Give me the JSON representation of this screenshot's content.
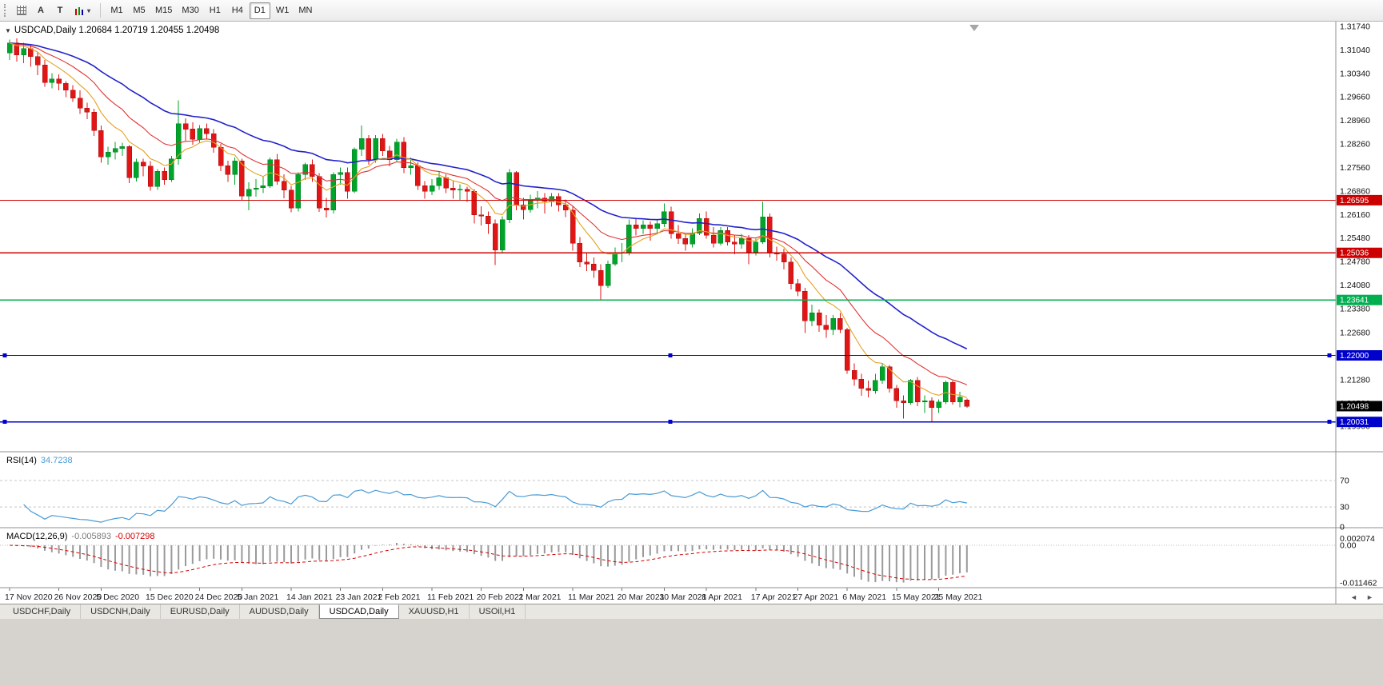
{
  "toolbar": {
    "cursor_label": "A",
    "text_label": "T",
    "timeframes": [
      "M1",
      "M5",
      "M15",
      "M30",
      "H1",
      "H4",
      "D1",
      "W1",
      "MN"
    ],
    "active_timeframe": "D1"
  },
  "icons": {
    "indicator_caret": "▾",
    "info_caret": "▼",
    "shift_marker": "▼",
    "scroll_left": "◄",
    "scroll_right": "►"
  },
  "info_bar": {
    "symbol": "USDCAD,Daily",
    "open": "1.20684",
    "high": "1.20719",
    "low": "1.20455",
    "close": "1.20498"
  },
  "price_axis": {
    "labels": [
      "1.31740",
      "1.31040",
      "1.30340",
      "1.29660",
      "1.28960",
      "1.28260",
      "1.27560",
      "1.26860",
      "1.26160",
      "1.25480",
      "1.24780",
      "1.24080",
      "1.23380",
      "1.22680",
      "1.21980",
      "1.21280",
      "1.20580",
      "1.19900"
    ],
    "current_price": "1.20498"
  },
  "hlines": [
    {
      "price": 1.26595,
      "label": "1.26595",
      "color": "#cc0000",
      "handles": false
    },
    {
      "price": 1.25036,
      "label": "1.25036",
      "color": "#cc0000",
      "handles": false
    },
    {
      "price": 1.23641,
      "label": "1.23641",
      "color": "#00b050",
      "handles": false
    },
    {
      "price": 1.22,
      "label": "1.22000",
      "color": "#0000cc",
      "handles": true
    },
    {
      "price": 1.20031,
      "label": "1.20031",
      "color": "#0000cc",
      "handles": true
    }
  ],
  "rsi_panel": {
    "label": "RSI(14)",
    "value": "34.7238",
    "period": 14,
    "levels": [
      "70",
      "30",
      "0"
    ],
    "level_values": [
      70,
      30,
      0
    ],
    "color": "#4a9bd5"
  },
  "macd_panel": {
    "label": "MACD(12,26,9)",
    "main_value": "-0.005893",
    "signal_value": "-0.007298",
    "fast": 12,
    "slow": 26,
    "signal": 9,
    "axis_labels": [
      "0.002074",
      "0.00",
      "-0.011462"
    ],
    "axis_values": [
      0.002074,
      0,
      -0.011462
    ],
    "histogram_color": "#9a9a9a",
    "signal_color": "#d40000"
  },
  "date_axis": {
    "ticks": [
      {
        "label": "17 Nov 2020",
        "index": 0
      },
      {
        "label": "26 Nov 2020",
        "index": 7
      },
      {
        "label": "5 Dec 2020",
        "index": 13
      },
      {
        "label": "15 Dec 2020",
        "index": 20
      },
      {
        "label": "24 Dec 2020",
        "index": 27
      },
      {
        "label": "5 Jan 2021",
        "index": 33
      },
      {
        "label": "14 Jan 2021",
        "index": 40
      },
      {
        "label": "23 Jan 2021",
        "index": 47
      },
      {
        "label": "2 Feb 2021",
        "index": 53
      },
      {
        "label": "11 Feb 2021",
        "index": 60
      },
      {
        "label": "20 Feb 2021",
        "index": 67
      },
      {
        "label": "2 Mar 2021",
        "index": 73
      },
      {
        "label": "11 Mar 2021",
        "index": 80
      },
      {
        "label": "20 Mar 2021",
        "index": 87
      },
      {
        "label": "30 Mar 2021",
        "index": 93
      },
      {
        "label": "8 Apr 2021",
        "index": 99
      },
      {
        "label": "17 Apr 2021",
        "index": 106
      },
      {
        "label": "27 Apr 2021",
        "index": 112
      },
      {
        "label": "6 May 2021",
        "index": 119
      },
      {
        "label": "15 May 2021",
        "index": 126
      },
      {
        "label": "25 May 2021",
        "index": 132
      }
    ]
  },
  "tabs": {
    "items": [
      "USDCHF,Daily",
      "USDCNH,Daily",
      "EURUSD,Daily",
      "AUDUSD,Daily",
      "USDCAD,Daily",
      "XAUUSD,H1",
      "USOil,H1"
    ],
    "active": "USDCAD,Daily"
  },
  "colors": {
    "up": "#00a42a",
    "down": "#e01515",
    "ma_fast": "#e5a121",
    "ma_mid": "#e03232",
    "ma_slow": "#2222cc"
  },
  "chart_data": {
    "type": "candlestick",
    "symbol": "USDCAD",
    "timeframe": "Daily",
    "ylim": [
      1.19148,
      1.31882
    ],
    "moving_averages": [
      {
        "name": "fast",
        "method": "ema",
        "period": 8,
        "color": "#e5a121"
      },
      {
        "name": "mid",
        "method": "ema",
        "period": 16,
        "color": "#e03232"
      },
      {
        "name": "slow",
        "method": "ema",
        "period": 34,
        "color": "#2222cc"
      }
    ],
    "candles": [
      [
        1.3095,
        1.3135,
        1.3075,
        1.3125
      ],
      [
        1.3125,
        1.3138,
        1.307,
        1.309
      ],
      [
        1.309,
        1.3125,
        1.3065,
        1.3108
      ],
      [
        1.3108,
        1.312,
        1.3055,
        1.3085
      ],
      [
        1.3085,
        1.31,
        1.303,
        1.306
      ],
      [
        1.306,
        1.3075,
        1.2995,
        1.3008
      ],
      [
        1.3008,
        1.3035,
        1.299,
        1.3018
      ],
      [
        1.3018,
        1.3032,
        1.2985,
        1.3005
      ],
      [
        1.3005,
        1.3012,
        1.2965,
        1.2985
      ],
      [
        1.2985,
        1.3,
        1.295,
        1.2962
      ],
      [
        1.2962,
        1.2985,
        1.2915,
        1.2932
      ],
      [
        1.2932,
        1.2948,
        1.29,
        1.292
      ],
      [
        1.292,
        1.293,
        1.285,
        1.2866
      ],
      [
        1.2866,
        1.288,
        1.277,
        1.2788
      ],
      [
        1.2788,
        1.2818,
        1.2765,
        1.2802
      ],
      [
        1.2802,
        1.2832,
        1.278,
        1.2812
      ],
      [
        1.2812,
        1.283,
        1.279,
        1.2818
      ],
      [
        1.2818,
        1.2822,
        1.271,
        1.2726
      ],
      [
        1.2726,
        1.2782,
        1.2715,
        1.2772
      ],
      [
        1.2772,
        1.2782,
        1.273,
        1.276
      ],
      [
        1.276,
        1.2775,
        1.2688,
        1.27
      ],
      [
        1.27,
        1.2752,
        1.269,
        1.2745
      ],
      [
        1.2745,
        1.2756,
        1.2705,
        1.272
      ],
      [
        1.272,
        1.279,
        1.2714,
        1.2782
      ],
      [
        1.2782,
        1.2955,
        1.2765,
        1.2886
      ],
      [
        1.2886,
        1.2902,
        1.2835,
        1.287
      ],
      [
        1.287,
        1.289,
        1.2824,
        1.284
      ],
      [
        1.284,
        1.2882,
        1.283,
        1.2872
      ],
      [
        1.2872,
        1.2886,
        1.284,
        1.2856
      ],
      [
        1.2856,
        1.287,
        1.28,
        1.2816
      ],
      [
        1.2816,
        1.2826,
        1.2745,
        1.2762
      ],
      [
        1.2762,
        1.2776,
        1.2714,
        1.2736
      ],
      [
        1.2736,
        1.2786,
        1.2705,
        1.2776
      ],
      [
        1.2776,
        1.2782,
        1.266,
        1.2672
      ],
      [
        1.2672,
        1.2712,
        1.263,
        1.2692
      ],
      [
        1.2692,
        1.2722,
        1.267,
        1.2696
      ],
      [
        1.2696,
        1.273,
        1.268,
        1.2702
      ],
      [
        1.2702,
        1.2786,
        1.2696,
        1.278
      ],
      [
        1.278,
        1.2796,
        1.2705,
        1.2716
      ],
      [
        1.2716,
        1.2736,
        1.2665,
        1.269
      ],
      [
        1.269,
        1.2702,
        1.2624,
        1.2636
      ],
      [
        1.2636,
        1.2742,
        1.2626,
        1.2736
      ],
      [
        1.2736,
        1.277,
        1.272,
        1.2765
      ],
      [
        1.2765,
        1.278,
        1.2714,
        1.273
      ],
      [
        1.273,
        1.274,
        1.2625,
        1.2636
      ],
      [
        1.2636,
        1.2666,
        1.2608,
        1.263
      ],
      [
        1.263,
        1.2742,
        1.262,
        1.2736
      ],
      [
        1.2736,
        1.2756,
        1.2705,
        1.2742
      ],
      [
        1.2742,
        1.2756,
        1.2664,
        1.2686
      ],
      [
        1.2686,
        1.2816,
        1.268,
        1.281
      ],
      [
        1.281,
        1.288,
        1.279,
        1.2842
      ],
      [
        1.2842,
        1.2852,
        1.2764,
        1.278
      ],
      [
        1.278,
        1.2852,
        1.277,
        1.2842
      ],
      [
        1.2842,
        1.2856,
        1.279,
        1.2806
      ],
      [
        1.2806,
        1.282,
        1.276,
        1.278
      ],
      [
        1.278,
        1.2842,
        1.2774,
        1.2832
      ],
      [
        1.2832,
        1.2846,
        1.274,
        1.2756
      ],
      [
        1.2756,
        1.2786,
        1.2735,
        1.2762
      ],
      [
        1.2762,
        1.2772,
        1.269,
        1.2702
      ],
      [
        1.2702,
        1.2716,
        1.2664,
        1.2686
      ],
      [
        1.2686,
        1.2722,
        1.2675,
        1.2702
      ],
      [
        1.2702,
        1.2746,
        1.269,
        1.2726
      ],
      [
        1.2726,
        1.2736,
        1.268,
        1.2696
      ],
      [
        1.2696,
        1.2716,
        1.2664,
        1.269
      ],
      [
        1.269,
        1.2706,
        1.266,
        1.2692
      ],
      [
        1.2692,
        1.27,
        1.2655,
        1.2686
      ],
      [
        1.2686,
        1.2692,
        1.259,
        1.2616
      ],
      [
        1.2616,
        1.2642,
        1.2585,
        1.2612
      ],
      [
        1.2612,
        1.2626,
        1.256,
        1.259
      ],
      [
        1.259,
        1.2602,
        1.2468,
        1.2512
      ],
      [
        1.2512,
        1.2612,
        1.2502,
        1.2602
      ],
      [
        1.2602,
        1.2752,
        1.2592,
        1.2742
      ],
      [
        1.2742,
        1.2746,
        1.263,
        1.2646
      ],
      [
        1.2646,
        1.2666,
        1.2602,
        1.2632
      ],
      [
        1.2632,
        1.2676,
        1.2622,
        1.2662
      ],
      [
        1.2662,
        1.2686,
        1.2636,
        1.2666
      ],
      [
        1.2666,
        1.268,
        1.262,
        1.2656
      ],
      [
        1.2656,
        1.268,
        1.264,
        1.267
      ],
      [
        1.267,
        1.268,
        1.2626,
        1.2646
      ],
      [
        1.2646,
        1.2662,
        1.261,
        1.263
      ],
      [
        1.263,
        1.264,
        1.251,
        1.2532
      ],
      [
        1.2532,
        1.255,
        1.2462,
        1.2476
      ],
      [
        1.2476,
        1.2502,
        1.245,
        1.247
      ],
      [
        1.247,
        1.249,
        1.243,
        1.2452
      ],
      [
        1.2452,
        1.247,
        1.2365,
        1.2406
      ],
      [
        1.2406,
        1.248,
        1.24,
        1.247
      ],
      [
        1.247,
        1.252,
        1.2465,
        1.2502
      ],
      [
        1.2502,
        1.2532,
        1.2476,
        1.2505
      ],
      [
        1.2505,
        1.2602,
        1.2496,
        1.2586
      ],
      [
        1.2586,
        1.2605,
        1.2555,
        1.2576
      ],
      [
        1.2576,
        1.26,
        1.256,
        1.2586
      ],
      [
        1.2586,
        1.2596,
        1.254,
        1.2576
      ],
      [
        1.2576,
        1.2602,
        1.256,
        1.259
      ],
      [
        1.259,
        1.265,
        1.258,
        1.2626
      ],
      [
        1.2626,
        1.264,
        1.2545,
        1.256
      ],
      [
        1.256,
        1.2586,
        1.253,
        1.2546
      ],
      [
        1.2546,
        1.256,
        1.251,
        1.253
      ],
      [
        1.253,
        1.2576,
        1.252,
        1.2562
      ],
      [
        1.2562,
        1.262,
        1.2556,
        1.2606
      ],
      [
        1.2606,
        1.2626,
        1.2545,
        1.2556
      ],
      [
        1.2556,
        1.258,
        1.252,
        1.2532
      ],
      [
        1.2532,
        1.258,
        1.2526,
        1.257
      ],
      [
        1.257,
        1.258,
        1.2525,
        1.2536
      ],
      [
        1.2536,
        1.2556,
        1.25,
        1.253
      ],
      [
        1.253,
        1.256,
        1.2516,
        1.2546
      ],
      [
        1.2546,
        1.2556,
        1.247,
        1.2506
      ],
      [
        1.2506,
        1.2546,
        1.2496,
        1.2536
      ],
      [
        1.2536,
        1.2656,
        1.253,
        1.261
      ],
      [
        1.261,
        1.262,
        1.249,
        1.2502
      ],
      [
        1.2502,
        1.2522,
        1.248,
        1.25
      ],
      [
        1.25,
        1.2516,
        1.2455,
        1.2476
      ],
      [
        1.2476,
        1.249,
        1.2395,
        1.2412
      ],
      [
        1.2412,
        1.2426,
        1.2375,
        1.239
      ],
      [
        1.239,
        1.24,
        1.2266,
        1.2302
      ],
      [
        1.2302,
        1.235,
        1.2286,
        1.2326
      ],
      [
        1.2326,
        1.2336,
        1.227,
        1.229
      ],
      [
        1.229,
        1.232,
        1.2252,
        1.2276
      ],
      [
        1.2276,
        1.232,
        1.226,
        1.231
      ],
      [
        1.231,
        1.2326,
        1.2266,
        1.2276
      ],
      [
        1.2276,
        1.2282,
        1.2145,
        1.2156
      ],
      [
        1.2156,
        1.2176,
        1.211,
        1.213
      ],
      [
        1.213,
        1.2146,
        1.208,
        1.2102
      ],
      [
        1.2102,
        1.2126,
        1.2076,
        1.2096
      ],
      [
        1.2096,
        1.2146,
        1.2086,
        1.2126
      ],
      [
        1.2126,
        1.2176,
        1.2116,
        1.2166
      ],
      [
        1.2166,
        1.2172,
        1.209,
        1.2102
      ],
      [
        1.2102,
        1.2112,
        1.2045,
        1.2066
      ],
      [
        1.2066,
        1.2082,
        1.2013,
        1.206
      ],
      [
        1.206,
        1.213,
        1.2055,
        1.2126
      ],
      [
        1.2126,
        1.2136,
        1.205,
        1.2062
      ],
      [
        1.2062,
        1.2082,
        1.203,
        1.2066
      ],
      [
        1.2066,
        1.2076,
        1.2005,
        1.2046
      ],
      [
        1.2046,
        1.207,
        1.203,
        1.2062
      ],
      [
        1.2062,
        1.2126,
        1.2056,
        1.212
      ],
      [
        1.212,
        1.2126,
        1.2055,
        1.2062
      ],
      [
        1.2062,
        1.2092,
        1.2046,
        1.2076
      ],
      [
        1.20684,
        1.20719,
        1.20455,
        1.20498
      ]
    ]
  }
}
